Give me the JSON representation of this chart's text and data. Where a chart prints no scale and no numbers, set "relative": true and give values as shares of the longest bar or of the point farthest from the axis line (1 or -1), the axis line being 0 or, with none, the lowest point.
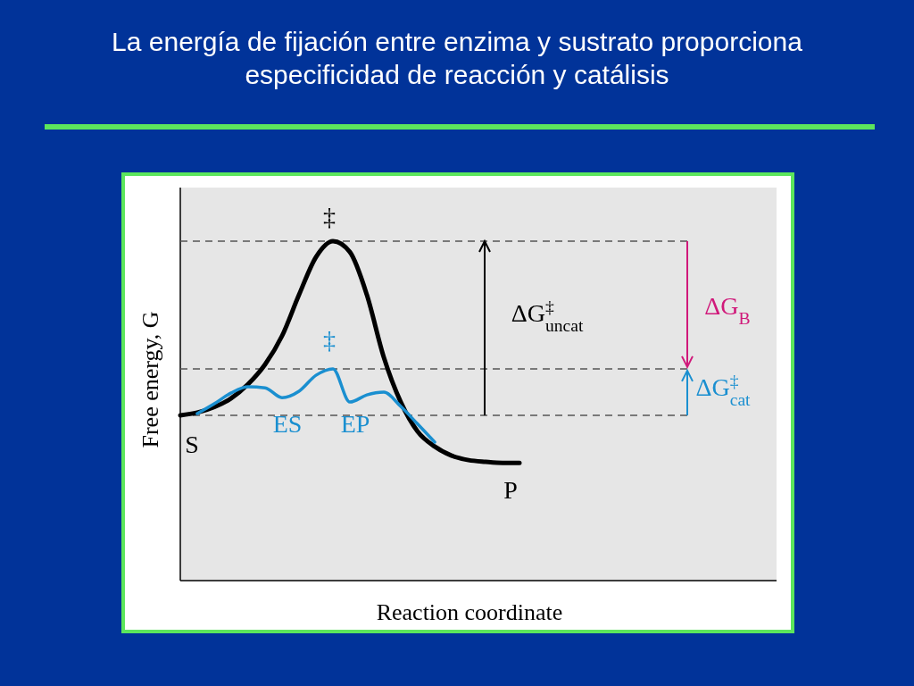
{
  "chart_data": {
    "type": "line",
    "relative": true,
    "title": "La energía de fijación entre enzima y sustrato proporciona especificidad de reacción y catálisis",
    "xlabel": "Reaction coordinate",
    "ylabel": "Free energy, G",
    "categories": [
      null,
      null,
      null,
      null,
      null,
      null,
      null,
      null,
      null,
      null,
      null,
      null,
      null,
      null,
      null,
      null,
      null,
      null,
      null,
      null,
      null
    ],
    "series": [
      {
        "color": "#000000",
        "values": [
          0.487,
          0.495,
          0.511,
          0.537,
          0.579,
          0.637,
          0.721,
          0.842,
          0.953,
          1,
          0.968,
          0.842,
          0.658,
          0.526,
          0.439,
          0.395,
          0.368,
          0.355,
          0.35,
          0.347,
          0.347
        ]
      },
      {
        "color": "#1a8fd0",
        "values": [
          null,
          0.492,
          0.521,
          0.553,
          0.571,
          0.568,
          0.539,
          0.558,
          0.605,
          0.624,
          0.526,
          0.547,
          0.555,
          0.513,
          0.461,
          0.408,
          null,
          null,
          null,
          null,
          null
        ]
      }
    ],
    "ref_lines": [
      {
        "axis": "y",
        "value": 1,
        "color": "#555555",
        "line_style": "dashed"
      },
      {
        "axis": "y",
        "value": 0.624,
        "color": "#555555",
        "line_style": "dashed"
      },
      {
        "axis": "y",
        "value": 0.487,
        "color": "#555555",
        "line_style": "dashed"
      }
    ],
    "annotations": [
      "‡",
      "‡",
      "ES",
      "EP",
      "S",
      "P",
      "ΔG$^{‡}$$_{uncat}$",
      "ΔG$_{B}$",
      "ΔG$^{‡}$$_{cat}$"
    ]
  }
}
